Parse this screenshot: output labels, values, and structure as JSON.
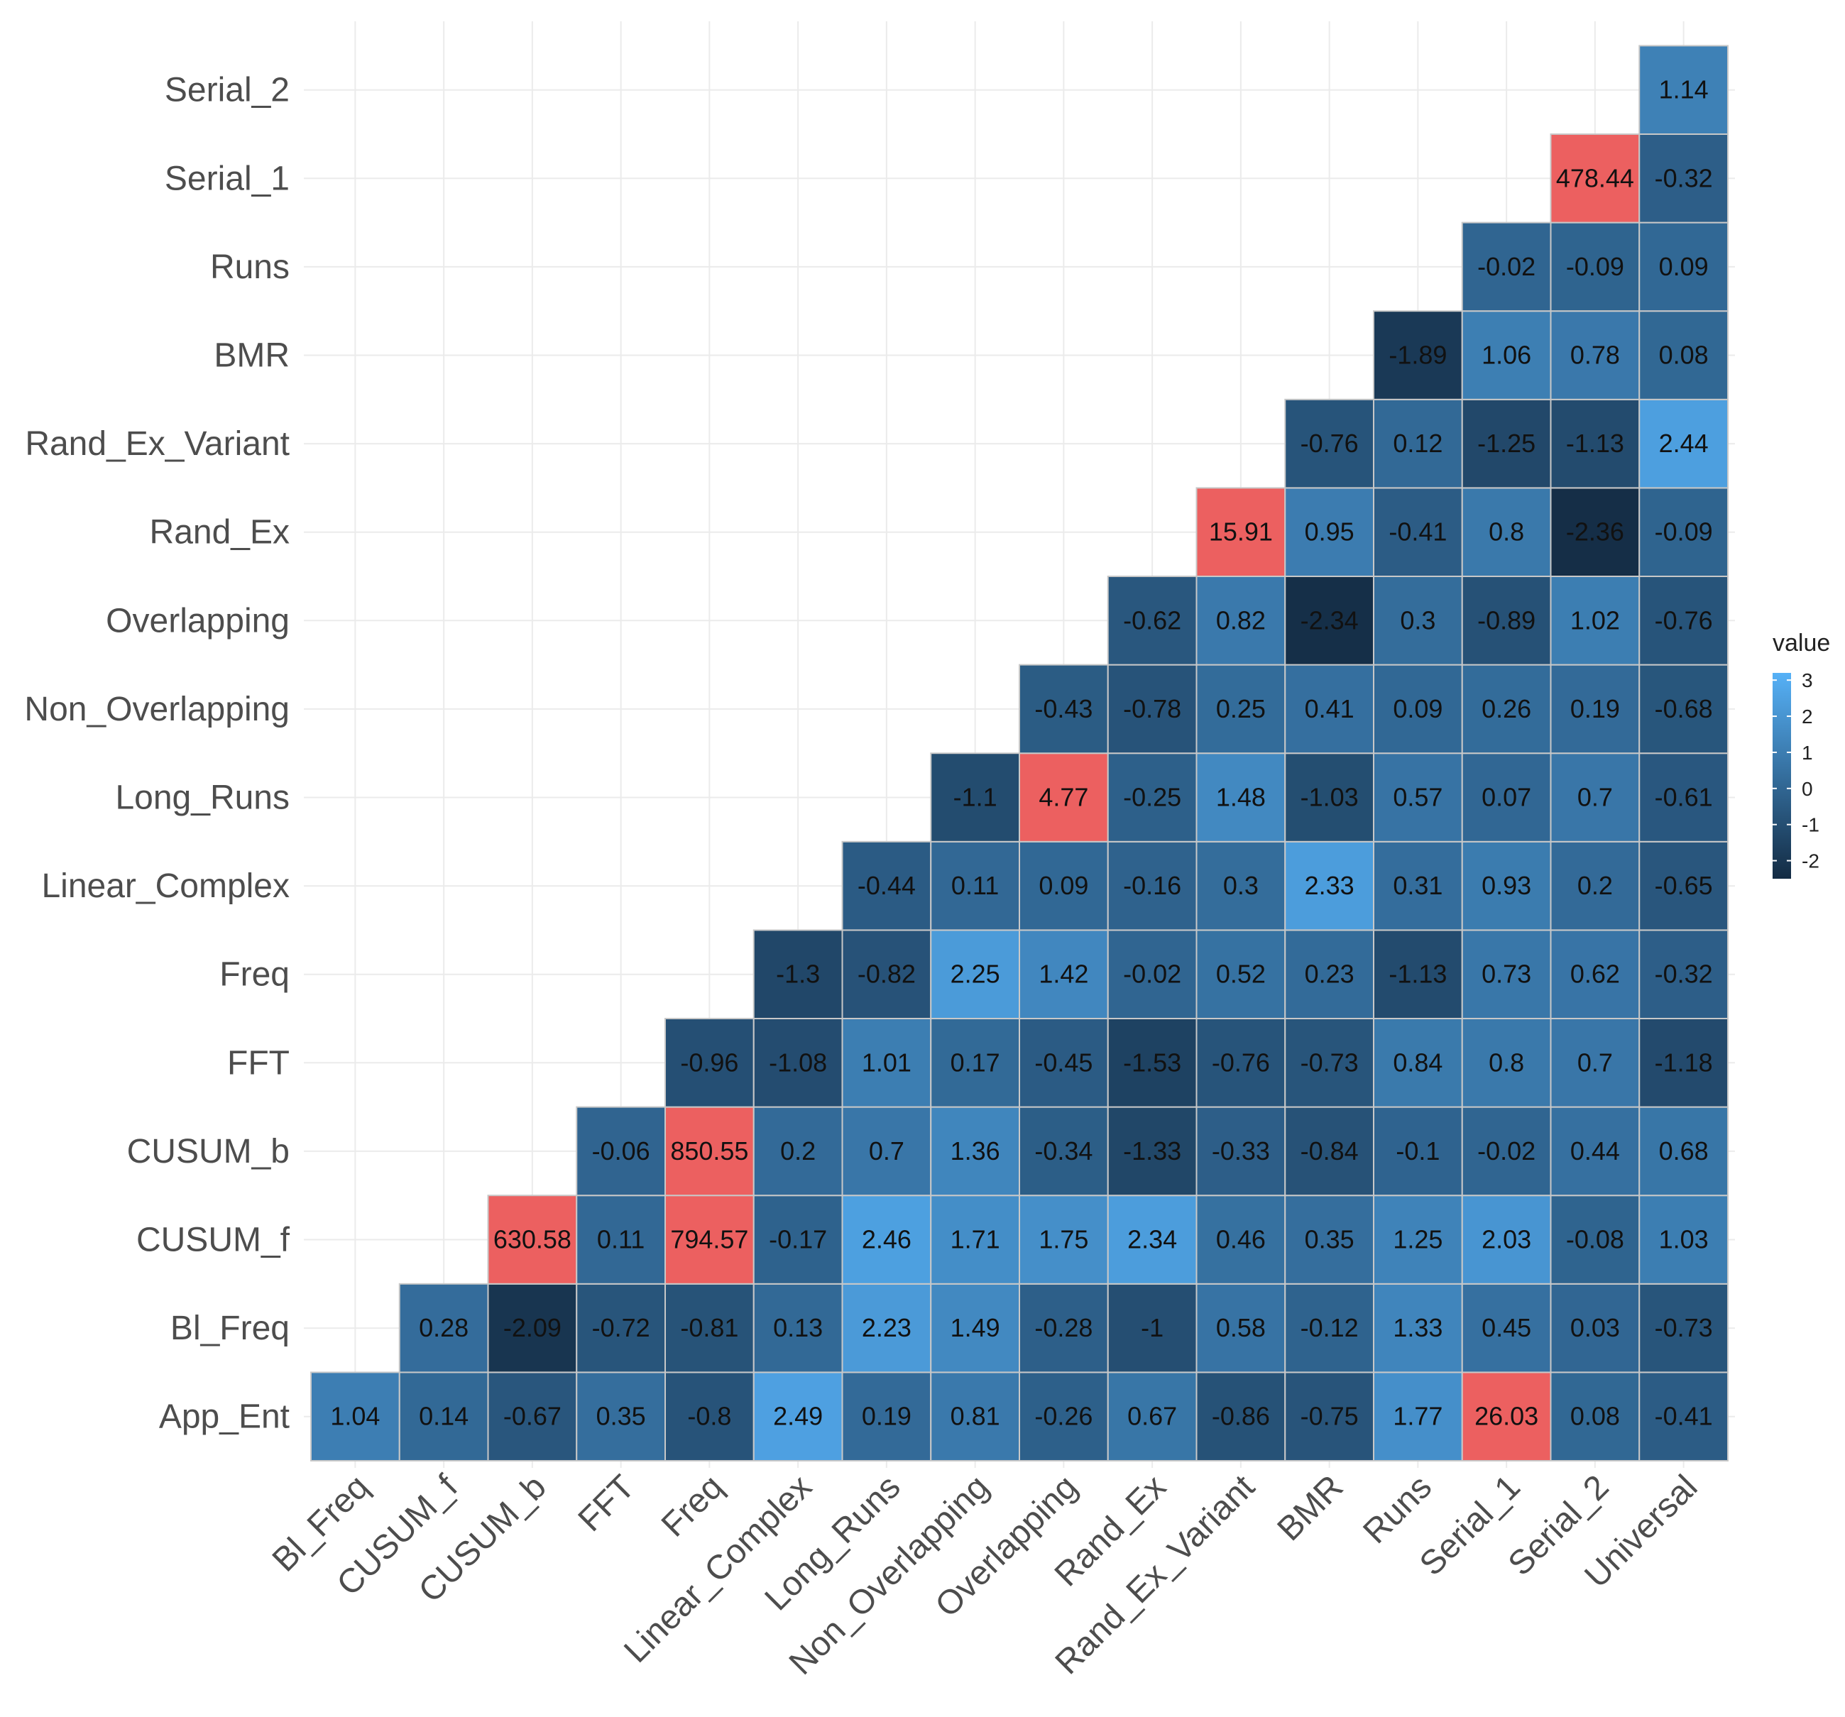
{
  "chart_data": {
    "type": "heatmap",
    "title": "",
    "xlabel": "",
    "ylabel": "",
    "x_categories": [
      "Bl_Freq",
      "CUSUM_f",
      "CUSUM_b",
      "FFT",
      "Freq",
      "Linear_Complex",
      "Long_Runs",
      "Non_Overlapping",
      "Overlapping",
      "Rand_Ex",
      "Rand_Ex_Variant",
      "BMR",
      "Runs",
      "Serial_1",
      "Serial_2",
      "Universal"
    ],
    "y_categories": [
      "App_Ent",
      "Bl_Freq",
      "CUSUM_f",
      "CUSUM_b",
      "FFT",
      "Freq",
      "Linear_Complex",
      "Long_Runs",
      "Non_Overlapping",
      "Overlapping",
      "Rand_Ex",
      "Rand_Ex_Variant",
      "BMR",
      "Runs",
      "Serial_1",
      "Serial_2"
    ],
    "rows": [
      [
        "1.04",
        "0.14",
        "-0.67",
        "0.35",
        "-0.8",
        "2.49",
        "0.19",
        "0.81",
        "-0.26",
        "0.67",
        "-0.86",
        "-0.75",
        "1.77",
        "26.03",
        "0.08",
        "-0.41"
      ],
      [
        null,
        "0.28",
        "-2.09",
        "-0.72",
        "-0.81",
        "0.13",
        "2.23",
        "1.49",
        "-0.28",
        "-1",
        "0.58",
        "-0.12",
        "1.33",
        "0.45",
        "0.03",
        "-0.73"
      ],
      [
        null,
        null,
        "630.58",
        "0.11",
        "794.57",
        "-0.17",
        "2.46",
        "1.71",
        "1.75",
        "2.34",
        "0.46",
        "0.35",
        "1.25",
        "2.03",
        "-0.08",
        "1.03"
      ],
      [
        null,
        null,
        null,
        "-0.06",
        "850.55",
        "0.2",
        "0.7",
        "1.36",
        "-0.34",
        "-1.33",
        "-0.33",
        "-0.84",
        "-0.1",
        "-0.02",
        "0.44",
        "0.68"
      ],
      [
        null,
        null,
        null,
        null,
        "-0.96",
        "-1.08",
        "1.01",
        "0.17",
        "-0.45",
        "-1.53",
        "-0.76",
        "-0.73",
        "0.84",
        "0.8",
        "0.7",
        "-1.18"
      ],
      [
        null,
        null,
        null,
        null,
        null,
        "-1.3",
        "-0.82",
        "2.25",
        "1.42",
        "-0.02",
        "0.52",
        "0.23",
        "-1.13",
        "0.73",
        "0.62",
        "-0.32"
      ],
      [
        null,
        null,
        null,
        null,
        null,
        null,
        "-0.44",
        "0.11",
        "0.09",
        "-0.16",
        "0.3",
        "2.33",
        "0.31",
        "0.93",
        "0.2",
        "-0.65"
      ],
      [
        null,
        null,
        null,
        null,
        null,
        null,
        null,
        "-1.1",
        "4.77",
        "-0.25",
        "1.48",
        "-1.03",
        "0.57",
        "0.07",
        "0.7",
        "-0.61"
      ],
      [
        null,
        null,
        null,
        null,
        null,
        null,
        null,
        null,
        "-0.43",
        "-0.78",
        "0.25",
        "0.41",
        "0.09",
        "0.26",
        "0.19",
        "-0.68"
      ],
      [
        null,
        null,
        null,
        null,
        null,
        null,
        null,
        null,
        null,
        "-0.62",
        "0.82",
        "-2.34",
        "0.3",
        "-0.89",
        "1.02",
        "-0.76"
      ],
      [
        null,
        null,
        null,
        null,
        null,
        null,
        null,
        null,
        null,
        null,
        "15.91",
        "0.95",
        "-0.41",
        "0.8",
        "-2.36",
        "-0.09"
      ],
      [
        null,
        null,
        null,
        null,
        null,
        null,
        null,
        null,
        null,
        null,
        null,
        "-0.76",
        "0.12",
        "-1.25",
        "-1.13",
        "2.44"
      ],
      [
        null,
        null,
        null,
        null,
        null,
        null,
        null,
        null,
        null,
        null,
        null,
        null,
        "-1.89",
        "1.06",
        "0.78",
        "0.08"
      ],
      [
        null,
        null,
        null,
        null,
        null,
        null,
        null,
        null,
        null,
        null,
        null,
        null,
        null,
        "-0.02",
        "-0.09",
        "0.09"
      ],
      [
        null,
        null,
        null,
        null,
        null,
        null,
        null,
        null,
        null,
        null,
        null,
        null,
        null,
        null,
        "478.44",
        "-0.32"
      ],
      [
        null,
        null,
        null,
        null,
        null,
        null,
        null,
        null,
        null,
        null,
        null,
        null,
        null,
        null,
        null,
        "1.14"
      ]
    ],
    "color_scale": {
      "low": "#132b43",
      "high": "#56b1f7",
      "limits": [
        -2.5,
        3.2
      ],
      "out_of_range": "#ec6060"
    },
    "legend": {
      "title": "value",
      "ticks": [
        "3",
        "2",
        "1",
        "0",
        "-1",
        "-2"
      ],
      "position": "right"
    },
    "grid": true
  }
}
